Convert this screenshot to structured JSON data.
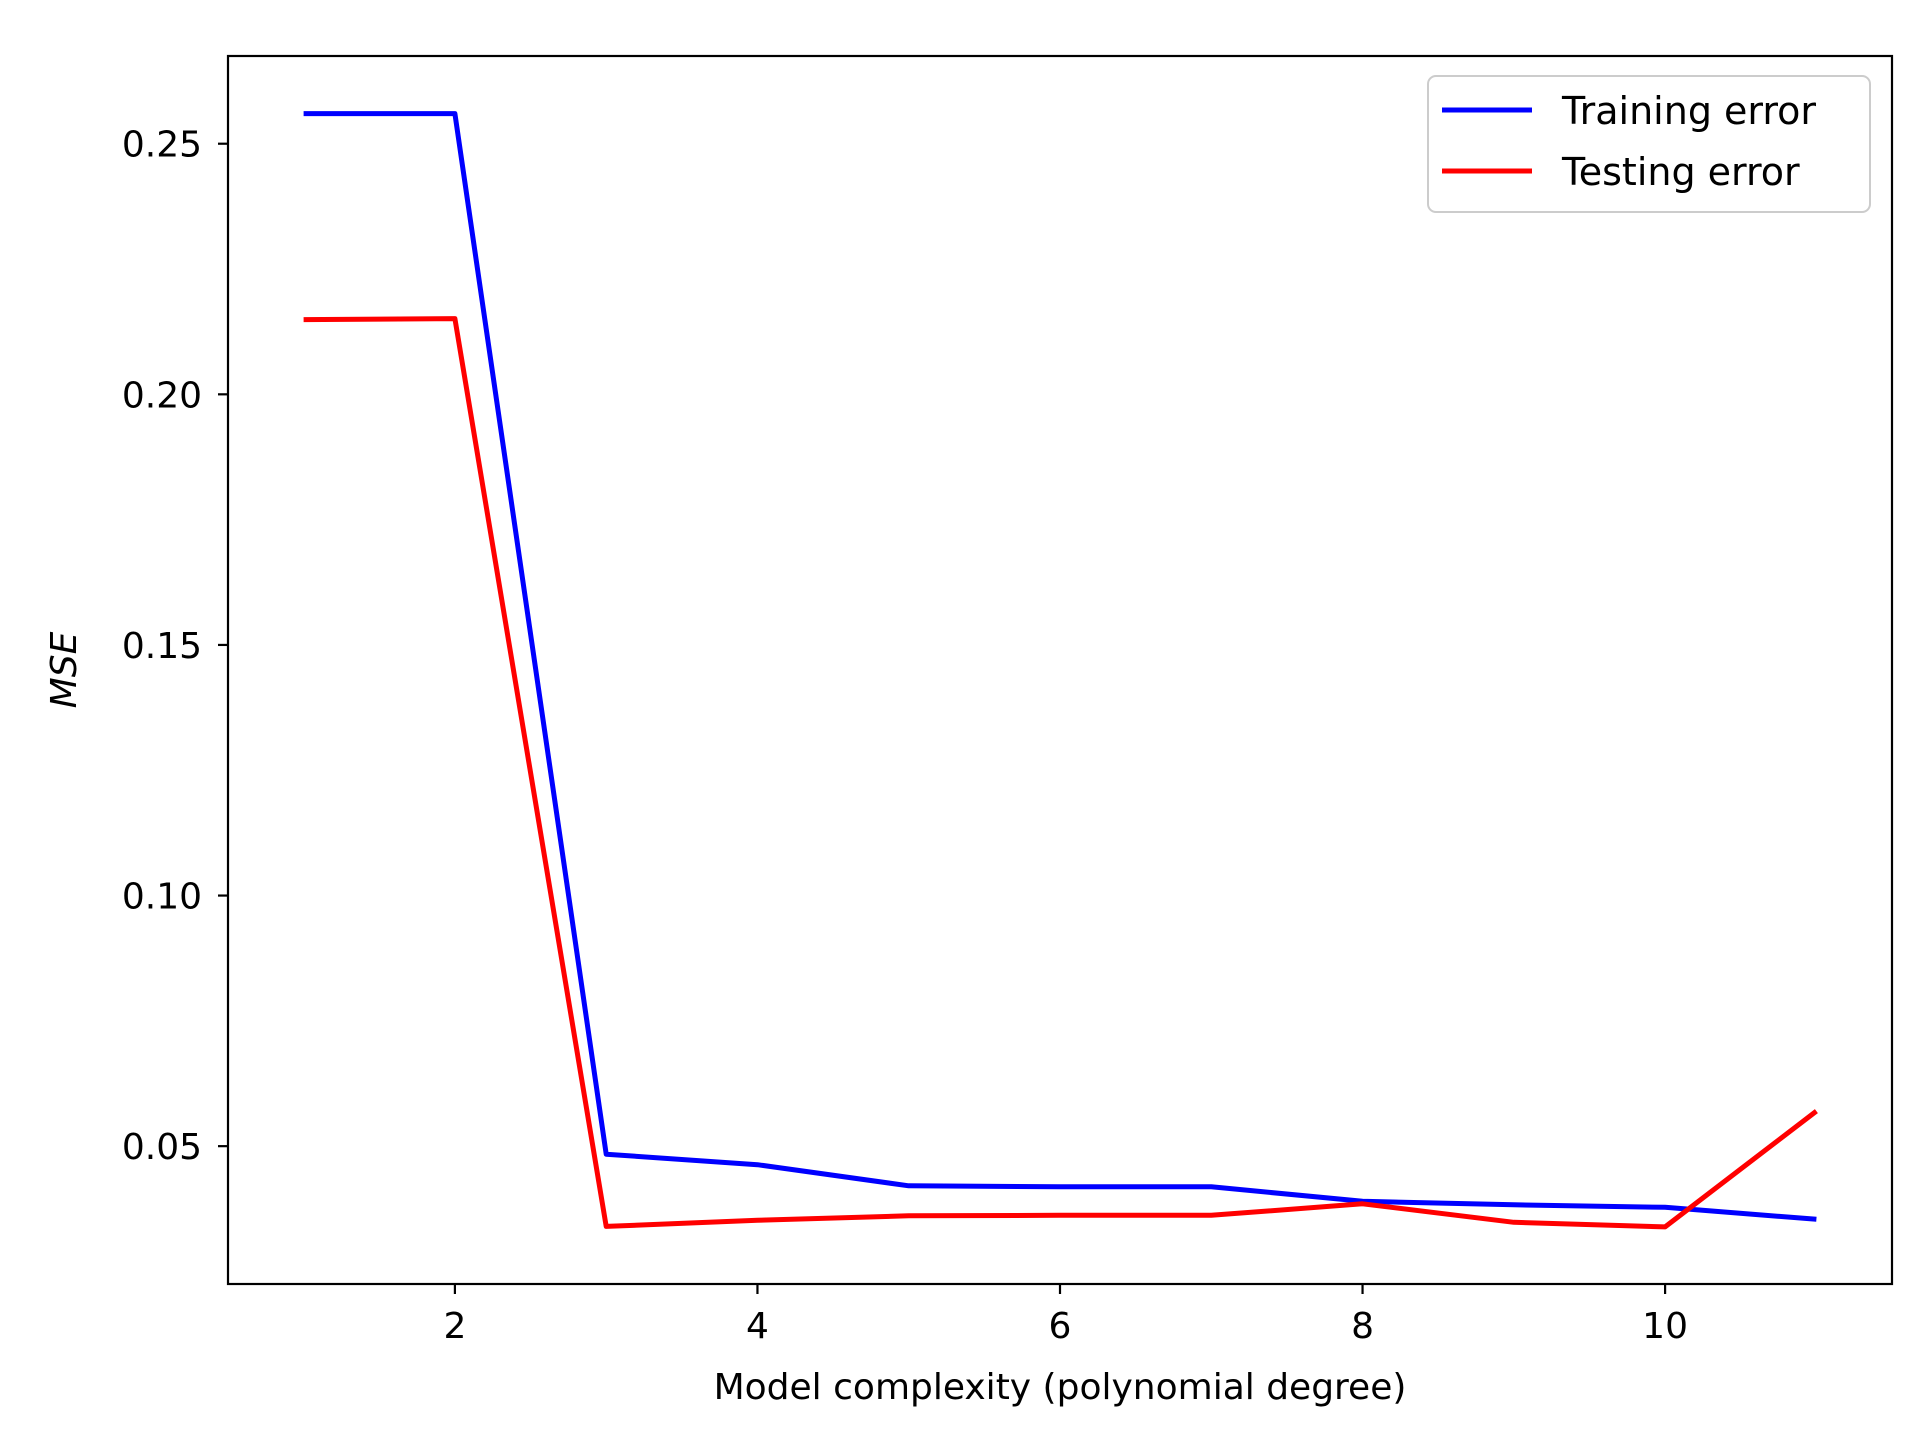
{
  "chart_data": {
    "type": "line",
    "title": "",
    "xlabel": "Model complexity (polynomial degree)",
    "ylabel": "MSE",
    "x": [
      1,
      2,
      3,
      4,
      5,
      6,
      7,
      8,
      9,
      10,
      11
    ],
    "xlim": [
      0.5,
      11.5
    ],
    "ylim": [
      0.0225,
      0.2675
    ],
    "xticks": [
      2,
      4,
      6,
      8,
      10
    ],
    "xtick_labels": [
      "2",
      "4",
      "6",
      "8",
      "10"
    ],
    "yticks": [
      0.05,
      0.1,
      0.15,
      0.2,
      0.25
    ],
    "ytick_labels": [
      "0.05",
      "0.10",
      "0.15",
      "0.20",
      "0.25"
    ],
    "grid": false,
    "legend_position": "top-right",
    "series": [
      {
        "name": "Training error",
        "color": "#0000ff",
        "values": [
          0.256,
          0.256,
          0.0484,
          0.0463,
          0.0421,
          0.0419,
          0.0419,
          0.039,
          0.0383,
          0.0378,
          0.0354
        ]
      },
      {
        "name": "Testing error",
        "color": "#ff0000",
        "values": [
          0.2149,
          0.2151,
          0.034,
          0.0352,
          0.0361,
          0.0362,
          0.0362,
          0.0385,
          0.0348,
          0.0339,
          0.057
        ]
      }
    ]
  }
}
